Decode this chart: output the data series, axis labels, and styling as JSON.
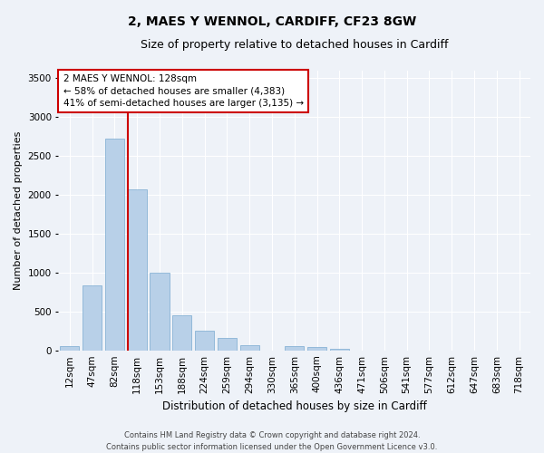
{
  "title": "2, MAES Y WENNOL, CARDIFF, CF23 8GW",
  "subtitle": "Size of property relative to detached houses in Cardiff",
  "xlabel": "Distribution of detached houses by size in Cardiff",
  "ylabel": "Number of detached properties",
  "footer_line1": "Contains HM Land Registry data © Crown copyright and database right 2024.",
  "footer_line2": "Contains public sector information licensed under the Open Government Licence v3.0.",
  "categories": [
    "12sqm",
    "47sqm",
    "82sqm",
    "118sqm",
    "153sqm",
    "188sqm",
    "224sqm",
    "259sqm",
    "294sqm",
    "330sqm",
    "365sqm",
    "400sqm",
    "436sqm",
    "471sqm",
    "506sqm",
    "541sqm",
    "577sqm",
    "612sqm",
    "647sqm",
    "683sqm",
    "718sqm"
  ],
  "values": [
    60,
    840,
    2720,
    2070,
    1000,
    450,
    250,
    155,
    65,
    0,
    50,
    40,
    25,
    0,
    0,
    0,
    0,
    0,
    0,
    0,
    0
  ],
  "bar_color": "#b8d0e8",
  "bar_edge_color": "#7aaad0",
  "annotation_text_line1": "2 MAES Y WENNOL: 128sqm",
  "annotation_text_line2": "← 58% of detached houses are smaller (4,383)",
  "annotation_text_line3": "41% of semi-detached houses are larger (3,135) →",
  "annotation_box_color": "#ffffff",
  "annotation_box_edge": "#cc0000",
  "vline_color": "#cc0000",
  "ylim": [
    0,
    3600
  ],
  "yticks": [
    0,
    500,
    1000,
    1500,
    2000,
    2500,
    3000,
    3500
  ],
  "background_color": "#eef2f8",
  "grid_color": "#ffffff",
  "title_fontsize": 10,
  "subtitle_fontsize": 9,
  "ylabel_fontsize": 8,
  "xlabel_fontsize": 8.5,
  "tick_fontsize": 7.5,
  "annotation_fontsize": 7.5,
  "footer_fontsize": 6
}
